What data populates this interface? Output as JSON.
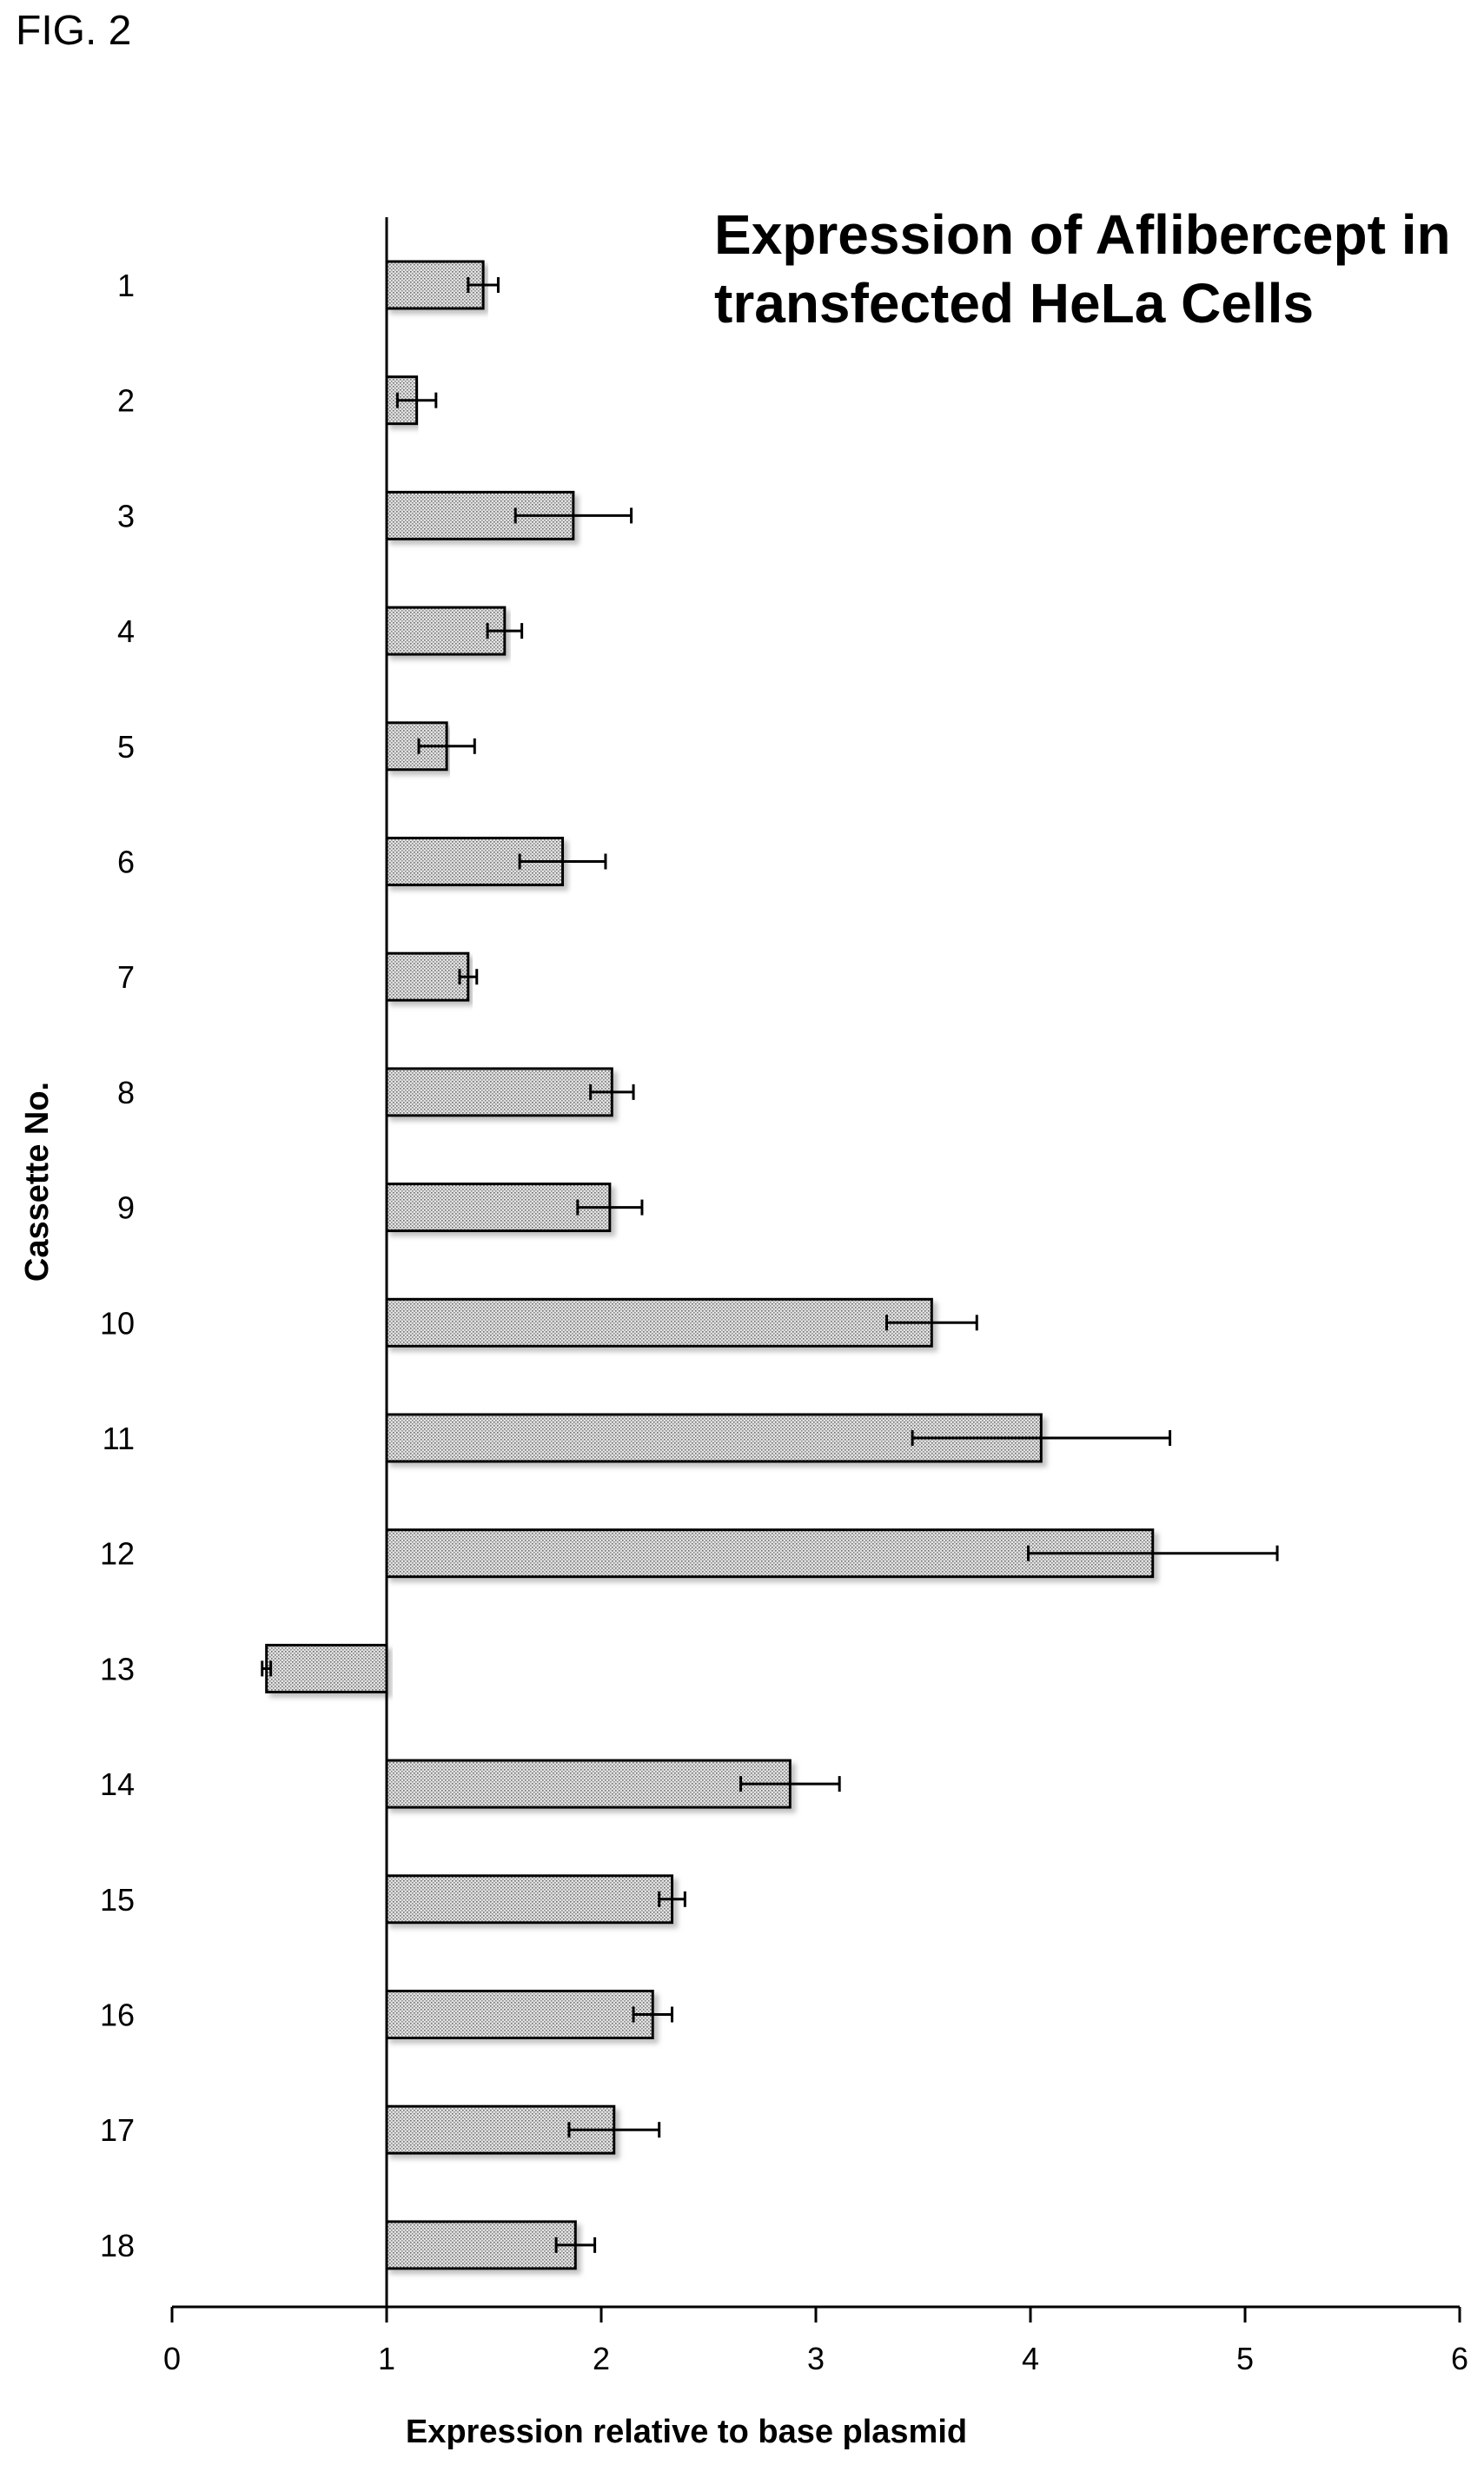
{
  "figure_label": "FIG. 2",
  "chart_data": {
    "type": "bar",
    "orientation": "horizontal",
    "title": [
      "Expression of Aflibercept in",
      "transfected HeLa Cells"
    ],
    "xlabel": "Expression relative to base plasmid",
    "ylabel": "Cassette No.",
    "xlim": [
      0,
      6
    ],
    "bar_origin": 1,
    "xticks": [
      0,
      1,
      2,
      3,
      4,
      5,
      6
    ],
    "grid": false,
    "legend": "none",
    "categories": [
      "1",
      "2",
      "3",
      "4",
      "5",
      "6",
      "7",
      "8",
      "9",
      "10",
      "11",
      "12",
      "13",
      "14",
      "15",
      "16",
      "17",
      "18"
    ],
    "values": [
      1.45,
      1.14,
      1.87,
      1.55,
      1.28,
      1.82,
      1.38,
      2.05,
      2.04,
      3.54,
      4.05,
      4.57,
      0.44,
      2.88,
      2.33,
      2.24,
      2.06,
      1.88
    ],
    "errors": [
      0.07,
      0.09,
      0.27,
      0.08,
      0.13,
      0.2,
      0.04,
      0.1,
      0.15,
      0.21,
      0.6,
      0.58,
      0.02,
      0.23,
      0.06,
      0.09,
      0.21,
      0.09
    ]
  }
}
